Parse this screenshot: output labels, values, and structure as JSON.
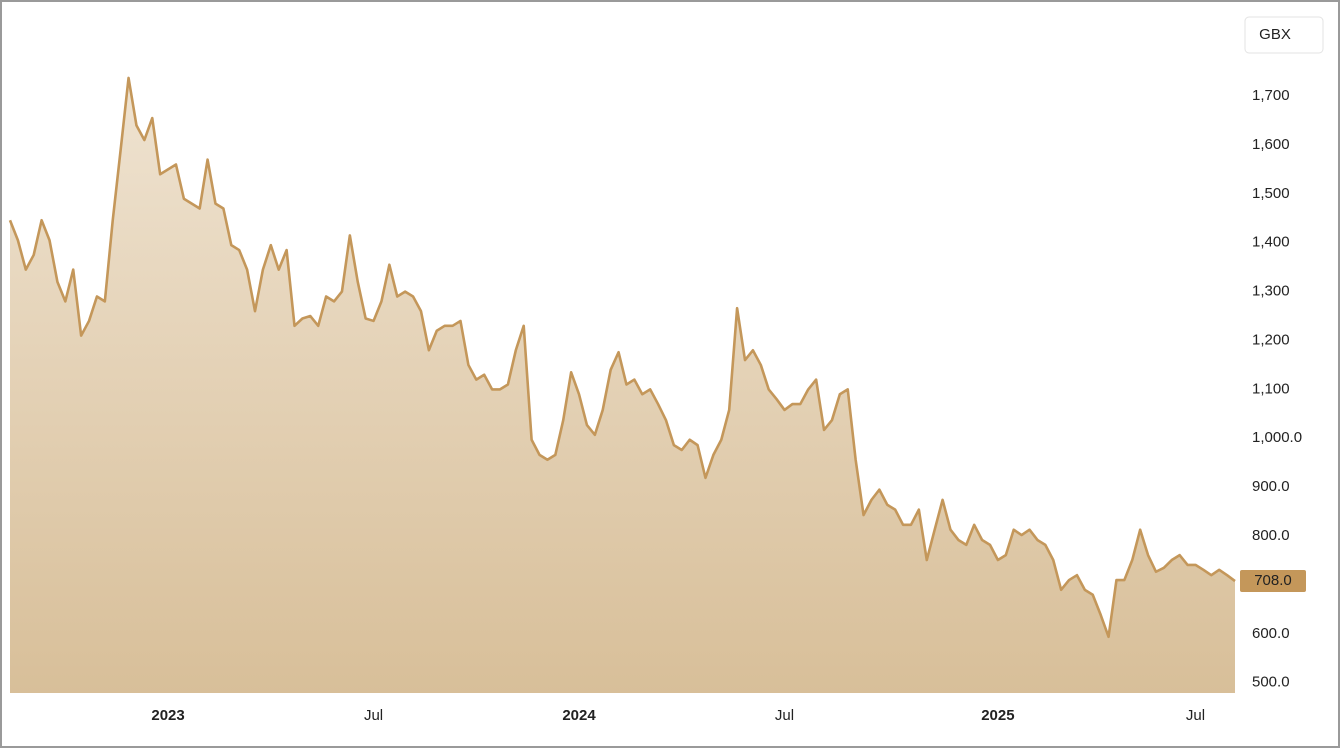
{
  "chart_data": {
    "type": "area",
    "currency": "GBX",
    "categories": [
      null,
      null,
      null,
      null,
      null,
      null,
      null,
      null,
      null,
      null,
      null,
      null,
      null,
      null,
      null,
      null,
      null,
      null,
      null,
      null,
      "2023",
      null,
      null,
      null,
      null,
      null,
      null,
      null,
      null,
      null,
      null,
      null,
      null,
      null,
      null,
      null,
      null,
      null,
      null,
      null,
      null,
      null,
      null,
      null,
      null,
      null,
      "Jul",
      null,
      null,
      null,
      null,
      null,
      null,
      null,
      null,
      null,
      null,
      null,
      null,
      null,
      null,
      null,
      null,
      null,
      null,
      null,
      null,
      null,
      null,
      null,
      null,
      null,
      "2024",
      null,
      null,
      null,
      null,
      null,
      null,
      null,
      null,
      null,
      null,
      null,
      null,
      null,
      null,
      null,
      null,
      null,
      null,
      null,
      null,
      null,
      null,
      null,
      null,
      null,
      "Jul",
      null,
      null,
      null,
      null,
      null,
      null,
      null,
      null,
      null,
      null,
      null,
      null,
      null,
      null,
      null,
      null,
      null,
      null,
      null,
      null,
      null,
      null,
      null,
      null,
      null,
      null,
      "2025",
      null,
      null,
      null,
      null,
      null,
      null,
      null,
      null,
      null,
      null,
      null,
      null,
      null,
      null,
      null,
      null,
      null,
      null,
      null,
      null,
      null,
      null,
      null,
      null,
      "Jul",
      null,
      null,
      null,
      null,
      null
    ],
    "values": [
      1446,
      1405,
      1345,
      1375,
      1446,
      1405,
      1320,
      1280,
      1345,
      1210,
      1240,
      1290,
      1280,
      1446,
      1590,
      1737,
      1640,
      1610,
      1655,
      1540,
      1550,
      1560,
      1490,
      1480,
      1470,
      1570,
      1480,
      1470,
      1395,
      1385,
      1345,
      1260,
      1345,
      1395,
      1345,
      1385,
      1230,
      1245,
      1250,
      1230,
      1290,
      1280,
      1300,
      1415,
      1320,
      1245,
      1240,
      1280,
      1355,
      1290,
      1300,
      1290,
      1260,
      1180,
      1220,
      1230,
      1230,
      1240,
      1150,
      1120,
      1130,
      1100,
      1100,
      1110,
      1180,
      1230,
      997,
      966,
      956,
      966,
      1037,
      1135,
      1090,
      1027,
      1007,
      1058,
      1140,
      1176,
      1110,
      1120,
      1090,
      1100,
      1070,
      1037,
      986,
      976,
      997,
      986,
      919,
      966,
      997,
      1058,
      1266,
      1160,
      1180,
      1150,
      1100,
      1080,
      1058,
      1070,
      1070,
      1100,
      1120,
      1017,
      1037,
      1090,
      1100,
      956,
      843,
      874,
      895,
      864,
      854,
      823,
      823,
      854,
      751,
      813,
      874,
      813,
      792,
      782,
      823,
      792,
      782,
      751,
      761,
      813,
      802,
      813,
      792,
      782,
      751,
      690,
      710,
      720,
      690,
      680,
      639,
      594,
      710,
      710,
      751,
      813,
      761,
      727,
      735,
      751,
      761,
      741,
      741,
      731,
      720,
      731,
      720,
      708
    ],
    "color": "#c4975a",
    "current_price": {
      "value": 708,
      "label": "708.0"
    },
    "ylim": [
      479,
      1876
    ],
    "yticks": [
      {
        "value": 500,
        "label": "500.0"
      },
      {
        "value": 600,
        "label": "600.0"
      },
      {
        "value": 800,
        "label": "800.0"
      },
      {
        "value": 900,
        "label": "900.0"
      },
      {
        "value": 1000,
        "label": "1,000.0"
      },
      {
        "value": 1100,
        "label": "1,100"
      },
      {
        "value": 1200,
        "label": "1,200"
      },
      {
        "value": 1300,
        "label": "1,300"
      },
      {
        "value": 1400,
        "label": "1,400"
      },
      {
        "value": 1500,
        "label": "1,500"
      },
      {
        "value": 1600,
        "label": "1,600"
      },
      {
        "value": 1700,
        "label": "1,700"
      }
    ]
  }
}
